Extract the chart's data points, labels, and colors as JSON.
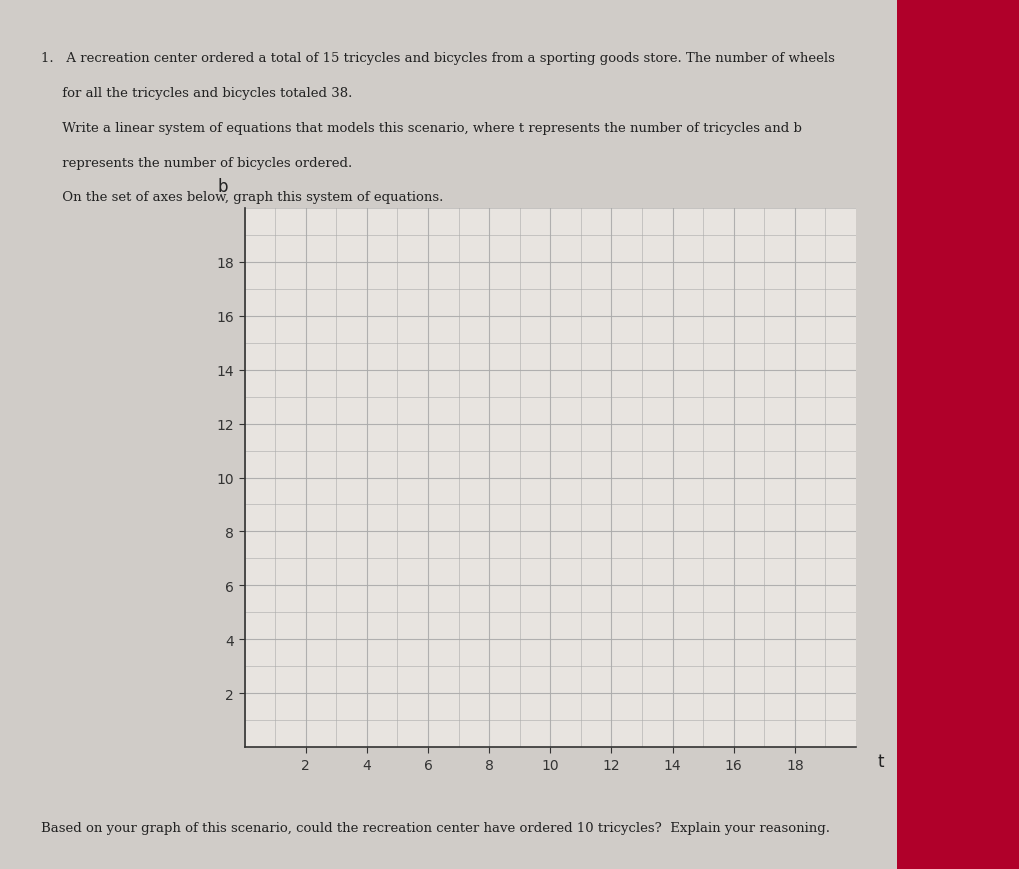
{
  "background_color": "#e8e4e0",
  "page_background": "#d0ccc8",
  "grid_color": "#aaaaaa",
  "axis_color": "#333333",
  "text_color": "#222222",
  "title_text_1": "1.   A recreation center ordered a total of 15 tricycles and bicycles from a sporting goods store. The number of wheels",
  "title_text_2": "     for all the tricycles and bicycles totaled 38.",
  "title_text_3": "     Write a linear system of equations that models this scenario, where t represents the number of tricycles and b",
  "title_text_4": "     represents the number of bicycles ordered.",
  "title_text_5": "     On the set of axes below, graph this system of equations.",
  "bottom_text": "Based on your graph of this scenario, could the recreation center have ordered 10 tricycles?  Explain your reasoning.",
  "xlabel": "t",
  "ylabel": "b",
  "xmin": 0,
  "xmax": 20,
  "ymin": 0,
  "ymax": 20,
  "xticks": [
    2,
    4,
    6,
    8,
    10,
    12,
    14,
    16,
    18
  ],
  "yticks": [
    2,
    4,
    6,
    8,
    10,
    12,
    14,
    16,
    18
  ],
  "grid_minor_every": 1,
  "grid_major_every": 2,
  "right_bg_color": "#b0002a"
}
